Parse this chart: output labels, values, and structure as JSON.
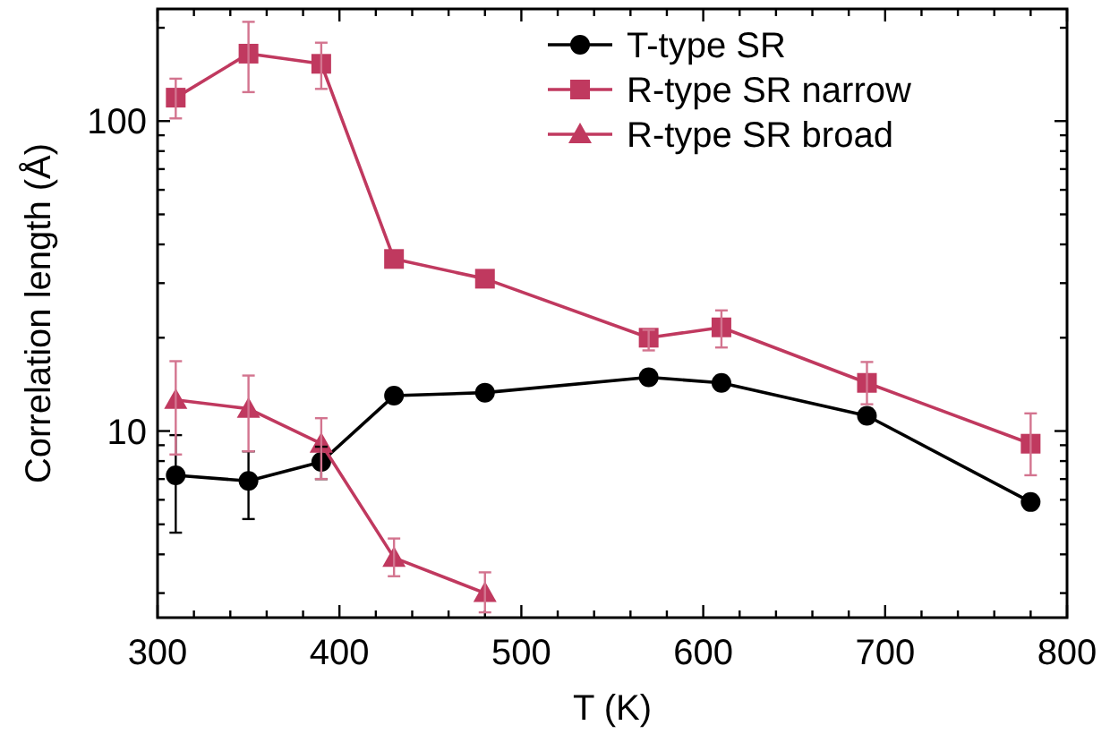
{
  "chart_data": {
    "type": "line",
    "xlabel": "T (K)",
    "ylabel": "Correlation length (Å)",
    "log": "y",
    "xlim": [
      300,
      800
    ],
    "xticks": [
      300,
      {
        "value": 320,
        "label": null
      },
      {
        "value": 340,
        "label": null
      },
      {
        "value": 360,
        "label": null
      },
      {
        "value": 380,
        "label": null
      },
      400,
      {
        "value": 420,
        "label": null
      },
      {
        "value": 440,
        "label": null
      },
      {
        "value": 460,
        "label": null
      },
      {
        "value": 480,
        "label": null
      },
      500,
      {
        "value": 520,
        "label": null
      },
      {
        "value": 540,
        "label": null
      },
      {
        "value": 560,
        "label": null
      },
      {
        "value": 580,
        "label": null
      },
      600,
      {
        "value": 620,
        "label": null
      },
      {
        "value": 640,
        "label": null
      },
      {
        "value": 660,
        "label": null
      },
      {
        "value": 680,
        "label": null
      },
      700,
      {
        "value": 720,
        "label": null
      },
      {
        "value": 740,
        "label": null
      },
      {
        "value": 760,
        "label": null
      },
      {
        "value": 780,
        "label": null
      },
      800
    ],
    "ylim": [
      2.5,
      230
    ],
    "yticks": [
      {
        "value": 3,
        "label": null
      },
      {
        "value": 4,
        "label": null
      },
      {
        "value": 5,
        "label": null
      },
      {
        "value": 6,
        "label": null
      },
      {
        "value": 7,
        "label": null
      },
      {
        "value": 8,
        "label": null
      },
      {
        "value": 9,
        "label": null
      },
      10,
      {
        "value": 20,
        "label": null
      },
      {
        "value": 30,
        "label": null
      },
      {
        "value": 40,
        "label": null
      },
      {
        "value": 50,
        "label": null
      },
      {
        "value": 60,
        "label": null
      },
      {
        "value": 70,
        "label": null
      },
      {
        "value": 80,
        "label": null
      },
      {
        "value": 90,
        "label": null
      },
      100,
      {
        "value": 200,
        "label": null
      }
    ],
    "grid": false,
    "legend": "top right",
    "line_style": "solid",
    "series": [
      {
        "name": "T-type SR",
        "color": "#000000",
        "marker": "circle",
        "x": [
          310,
          350,
          390,
          430,
          480,
          570,
          610,
          690,
          780
        ],
        "values": [
          7.2,
          6.9,
          7.95,
          13.0,
          13.3,
          14.9,
          14.3,
          11.2,
          5.9
        ],
        "errors": [
          [
            4.7,
            9.7
          ],
          [
            5.2,
            8.6
          ],
          [
            7.0,
            8.9
          ],
          null,
          null,
          null,
          null,
          null,
          null
        ]
      },
      {
        "name": "R-type SR narrow",
        "color": "#c0395f",
        "marker": "square",
        "x": [
          310,
          350,
          390,
          430,
          480,
          570,
          610,
          690,
          780
        ],
        "values": [
          119,
          165,
          153,
          35.9,
          31,
          20.0,
          21.6,
          14.3,
          9.1
        ],
        "errors": [
          [
            102,
            137
          ],
          [
            124,
            209
          ],
          [
            127,
            179
          ],
          null,
          null,
          [
            18.2,
            21.2
          ],
          [
            18.6,
            24.5
          ],
          [
            12.2,
            16.7
          ],
          [
            7.2,
            11.4
          ]
        ]
      },
      {
        "name": "R-type SR broad",
        "color": "#c0395f",
        "marker": "triangle",
        "x": [
          310,
          350,
          390,
          430,
          480
        ],
        "values": [
          12.6,
          11.8,
          9.1,
          3.9,
          3.0
        ],
        "errors": [
          [
            8.4,
            16.8
          ],
          [
            8.6,
            15.1
          ],
          [
            7.0,
            11.0
          ],
          [
            3.4,
            4.5
          ],
          [
            2.6,
            3.5
          ]
        ]
      }
    ]
  }
}
